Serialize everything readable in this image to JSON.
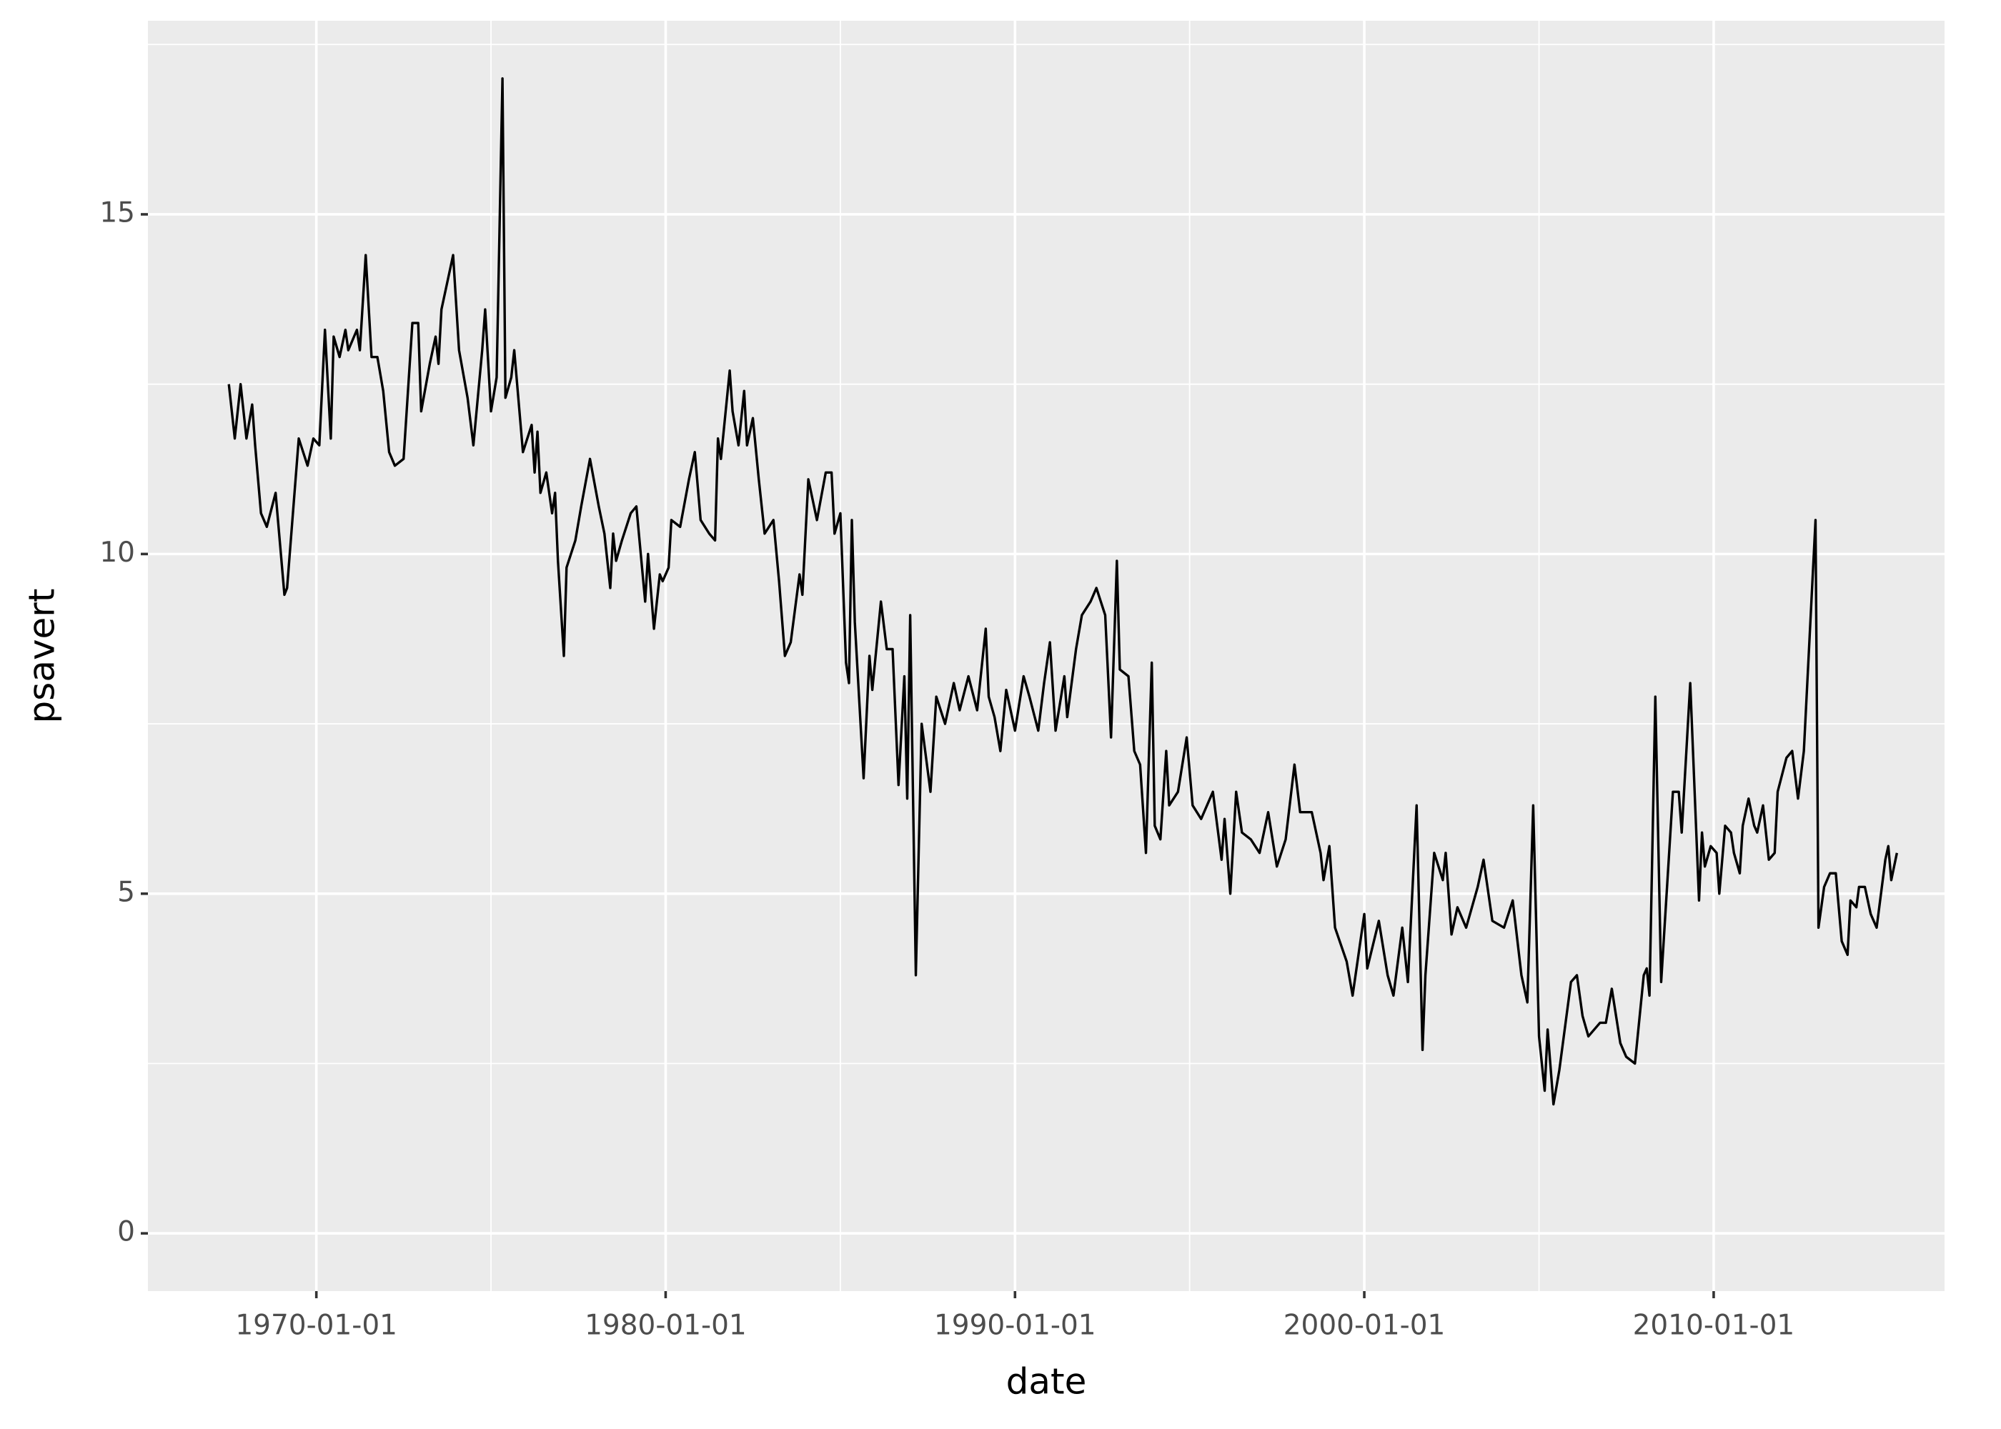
{
  "chart_data": {
    "type": "line",
    "x_label": "date",
    "y_label": "psavert",
    "color": "#000000",
    "grid": true,
    "x": [
      "1967-07-01",
      "1967-09-01",
      "1967-11-01",
      "1968-01-01",
      "1968-03-01",
      "1968-04-01",
      "1968-06-01",
      "1968-08-01",
      "1968-11-01",
      "1969-02-01",
      "1969-03-01",
      "1969-07-01",
      "1969-10-01",
      "1969-12-01",
      "1970-02-01",
      "1970-04-01",
      "1970-06-01",
      "1970-07-01",
      "1970-09-01",
      "1970-11-01",
      "1970-12-01",
      "1971-03-01",
      "1971-04-01",
      "1971-06-01",
      "1971-08-01",
      "1971-10-01",
      "1971-12-01",
      "1972-02-01",
      "1972-04-01",
      "1972-07-01",
      "1972-10-01",
      "1972-12-01",
      "1973-01-01",
      "1973-04-01",
      "1973-06-01",
      "1973-07-01",
      "1973-08-01",
      "1973-10-01",
      "1973-12-01",
      "1974-02-01",
      "1974-05-01",
      "1974-07-01",
      "1974-10-01",
      "1974-11-01",
      "1975-01-01",
      "1975-03-01",
      "1975-05-01",
      "1975-06-01",
      "1975-08-01",
      "1975-09-01",
      "1975-12-01",
      "1976-03-01",
      "1976-04-01",
      "1976-05-01",
      "1976-06-01",
      "1976-08-01",
      "1976-10-01",
      "1976-11-01",
      "1976-12-01",
      "1977-02-01",
      "1977-03-01",
      "1977-06-01",
      "1977-08-01",
      "1977-11-01",
      "1978-02-01",
      "1978-04-01",
      "1978-06-01",
      "1978-07-01",
      "1978-08-01",
      "1978-10-01",
      "1979-01-01",
      "1979-03-01",
      "1979-06-01",
      "1979-07-01",
      "1979-09-01",
      "1979-11-01",
      "1979-12-01",
      "1980-02-01",
      "1980-03-01",
      "1980-06-01",
      "1980-09-01",
      "1980-11-01",
      "1981-01-01",
      "1981-04-01",
      "1981-06-01",
      "1981-07-01",
      "1981-08-01",
      "1981-11-01",
      "1981-12-01",
      "1982-02-01",
      "1982-04-01",
      "1982-05-01",
      "1982-07-01",
      "1982-09-01",
      "1982-11-01",
      "1983-02-01",
      "1983-04-01",
      "1983-06-01",
      "1983-08-01",
      "1983-11-01",
      "1983-12-01",
      "1984-02-01",
      "1984-05-01",
      "1984-08-01",
      "1984-10-01",
      "1984-11-01",
      "1985-01-01",
      "1985-03-01",
      "1985-04-01",
      "1985-05-01",
      "1985-06-01",
      "1985-09-01",
      "1985-11-01",
      "1985-12-01",
      "1986-03-01",
      "1986-05-01",
      "1986-07-01",
      "1986-09-01",
      "1986-11-01",
      "1986-12-01",
      "1987-01-01",
      "1987-03-01",
      "1987-05-01",
      "1987-08-01",
      "1987-10-01",
      "1988-01-01",
      "1988-04-01",
      "1988-06-01",
      "1988-09-01",
      "1988-12-01",
      "1989-03-01",
      "1989-04-01",
      "1989-06-01",
      "1989-08-01",
      "1989-10-01",
      "1990-01-01",
      "1990-04-01",
      "1990-06-01",
      "1990-09-01",
      "1990-11-01",
      "1991-01-01",
      "1991-03-01",
      "1991-06-01",
      "1991-07-01",
      "1991-10-01",
      "1991-12-01",
      "1992-03-01",
      "1992-05-01",
      "1992-08-01",
      "1992-10-01",
      "1992-12-01",
      "1993-01-01",
      "1993-04-01",
      "1993-06-01",
      "1993-08-01",
      "1993-10-01",
      "1993-12-01",
      "1994-01-01",
      "1994-03-01",
      "1994-05-01",
      "1994-06-01",
      "1994-09-01",
      "1994-12-01",
      "1995-02-01",
      "1995-05-01",
      "1995-09-01",
      "1995-12-01",
      "1996-01-01",
      "1996-03-01",
      "1996-05-01",
      "1996-07-01",
      "1996-10-01",
      "1997-01-01",
      "1997-04-01",
      "1997-07-01",
      "1997-10-01",
      "1998-01-01",
      "1998-03-01",
      "1998-07-01",
      "1998-10-01",
      "1998-11-01",
      "1999-01-01",
      "1999-03-01",
      "1999-07-01",
      "1999-09-01",
      "1999-11-01",
      "2000-01-01",
      "2000-02-01",
      "2000-06-01",
      "2000-09-01",
      "2000-11-01",
      "2001-02-01",
      "2001-04-01",
      "2001-07-01",
      "2001-09-01",
      "2001-10-01",
      "2002-01-01",
      "2002-04-01",
      "2002-05-01",
      "2002-07-01",
      "2002-09-01",
      "2002-12-01",
      "2003-04-01",
      "2003-06-01",
      "2003-09-01",
      "2004-01-01",
      "2004-04-01",
      "2004-07-01",
      "2004-09-01",
      "2004-11-01",
      "2005-01-01",
      "2005-03-01",
      "2005-04-01",
      "2005-06-01",
      "2005-08-01",
      "2005-12-01",
      "2006-02-01",
      "2006-04-01",
      "2006-06-01",
      "2006-10-01",
      "2006-12-01",
      "2007-02-01",
      "2007-05-01",
      "2007-07-01",
      "2007-10-01",
      "2008-01-01",
      "2008-02-01",
      "2008-03-01",
      "2008-05-01",
      "2008-07-01",
      "2008-11-01",
      "2009-01-01",
      "2009-02-01",
      "2009-05-01",
      "2009-08-01",
      "2009-09-01",
      "2009-10-01",
      "2009-12-01",
      "2010-02-01",
      "2010-03-01",
      "2010-05-01",
      "2010-07-01",
      "2010-08-01",
      "2010-10-01",
      "2010-11-01",
      "2011-01-01",
      "2011-03-01",
      "2011-04-01",
      "2011-06-01",
      "2011-08-01",
      "2011-10-01",
      "2011-11-01",
      "2012-02-01",
      "2012-04-01",
      "2012-06-01",
      "2012-08-01",
      "2012-12-01",
      "2013-01-01",
      "2013-03-01",
      "2013-05-01",
      "2013-07-01",
      "2013-09-01",
      "2013-11-01",
      "2013-12-01",
      "2014-02-01",
      "2014-03-01",
      "2014-05-01",
      "2014-07-01",
      "2014-09-01",
      "2014-12-01",
      "2015-01-01",
      "2015-02-01",
      "2015-04-01"
    ],
    "values": [
      12.5,
      11.7,
      12.5,
      11.7,
      12.2,
      11.6,
      10.6,
      10.4,
      10.9,
      9.4,
      9.5,
      11.7,
      11.3,
      11.7,
      11.6,
      13.3,
      11.7,
      13.2,
      12.9,
      13.3,
      13.0,
      13.3,
      13.0,
      14.4,
      12.9,
      12.9,
      12.4,
      11.5,
      11.3,
      11.4,
      13.4,
      13.4,
      12.1,
      12.8,
      13.2,
      12.8,
      13.6,
      14.0,
      14.4,
      13.0,
      12.3,
      11.6,
      13.0,
      13.6,
      12.1,
      12.6,
      17.0,
      12.3,
      12.6,
      13.0,
      11.5,
      11.9,
      11.2,
      11.8,
      10.9,
      11.2,
      10.6,
      10.9,
      9.9,
      8.5,
      9.8,
      10.2,
      10.7,
      11.4,
      10.7,
      10.3,
      9.5,
      10.3,
      9.9,
      10.2,
      10.6,
      10.7,
      9.3,
      10.0,
      8.9,
      9.7,
      9.6,
      9.8,
      10.5,
      10.4,
      11.1,
      11.5,
      10.5,
      10.3,
      10.2,
      11.7,
      11.4,
      12.7,
      12.1,
      11.6,
      12.4,
      11.6,
      12.0,
      11.1,
      10.3,
      10.5,
      9.6,
      8.5,
      8.7,
      9.7,
      9.4,
      11.1,
      10.5,
      11.2,
      11.2,
      10.3,
      10.6,
      8.4,
      8.1,
      10.5,
      9.0,
      6.7,
      8.5,
      8.0,
      9.3,
      8.6,
      8.6,
      6.6,
      8.2,
      6.4,
      9.1,
      3.8,
      7.5,
      6.5,
      7.9,
      7.5,
      8.1,
      7.7,
      8.2,
      7.7,
      8.9,
      7.9,
      7.6,
      7.1,
      8.0,
      7.4,
      8.2,
      7.9,
      7.4,
      8.1,
      8.7,
      7.4,
      8.2,
      7.6,
      8.6,
      9.1,
      9.3,
      9.5,
      9.1,
      7.3,
      9.9,
      8.3,
      8.2,
      7.1,
      6.9,
      5.6,
      8.4,
      6.0,
      5.8,
      7.1,
      6.3,
      6.5,
      7.3,
      6.3,
      6.1,
      6.5,
      5.5,
      6.1,
      5.0,
      6.5,
      5.9,
      5.8,
      5.6,
      6.2,
      5.4,
      5.8,
      6.9,
      6.2,
      6.2,
      5.6,
      5.2,
      5.7,
      4.5,
      4.0,
      3.5,
      4.1,
      4.7,
      3.9,
      4.6,
      3.8,
      3.5,
      4.5,
      3.7,
      6.3,
      2.7,
      3.8,
      5.6,
      5.2,
      5.6,
      4.4,
      4.8,
      4.5,
      5.1,
      5.5,
      4.6,
      4.5,
      4.9,
      3.8,
      3.4,
      6.3,
      2.9,
      2.1,
      3.0,
      1.9,
      2.4,
      3.7,
      3.8,
      3.2,
      2.9,
      3.1,
      3.1,
      3.6,
      2.8,
      2.6,
      2.5,
      3.8,
      3.9,
      3.5,
      7.9,
      3.7,
      6.5,
      6.5,
      5.9,
      8.1,
      4.9,
      5.9,
      5.4,
      5.7,
      5.6,
      5.0,
      6.0,
      5.9,
      5.6,
      5.3,
      6.0,
      6.4,
      6.0,
      5.9,
      6.3,
      5.5,
      5.6,
      6.5,
      7.0,
      7.1,
      6.4,
      7.1,
      10.5,
      4.5,
      5.1,
      5.3,
      5.3,
      4.3,
      4.1,
      4.9,
      4.8,
      5.1,
      5.1,
      4.7,
      4.5,
      5.5,
      5.7,
      5.2,
      5.6
    ],
    "xlim": [
      "1965-03-07",
      "2016-08-11"
    ],
    "xticks": [
      "1970-01-01",
      "1980-01-01",
      "1990-01-01",
      "2000-01-01",
      "2010-01-01"
    ],
    "x_minor_ticks": [
      "1975-01-01",
      "1985-01-01",
      "1995-01-01",
      "2005-01-01"
    ],
    "ylim": [
      -0.85,
      17.85
    ],
    "yticks": [
      0,
      5,
      10,
      15
    ],
    "y_minor_ticks": [
      2.5,
      7.5,
      12.5,
      17.5
    ]
  }
}
